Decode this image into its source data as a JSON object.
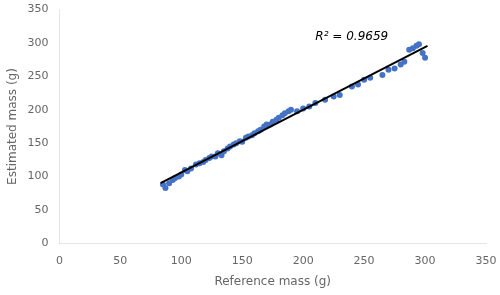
{
  "chart_data": {
    "type": "scatter",
    "xlabel": "Reference mass (g)",
    "ylabel": "Estimated mass (g)",
    "xlim": [
      0,
      350
    ],
    "ylim": [
      0,
      350
    ],
    "xticks": [
      0,
      50,
      100,
      150,
      200,
      250,
      300,
      350
    ],
    "yticks": [
      0,
      50,
      100,
      150,
      200,
      250,
      300,
      350
    ],
    "grid": false,
    "series": [
      {
        "type": "scatter",
        "color": "#4472C4",
        "marker": "circle",
        "x": [
          85,
          87,
          90,
          93,
          95,
          98,
          100,
          103,
          105,
          108,
          112,
          115,
          118,
          120,
          123,
          125,
          128,
          130,
          133,
          135,
          138,
          140,
          143,
          145,
          148,
          150,
          153,
          155,
          158,
          160,
          163,
          165,
          168,
          170,
          173,
          175,
          178,
          180,
          183,
          185,
          188,
          190,
          195,
          200,
          205,
          210,
          218,
          225,
          230,
          240,
          245,
          250,
          255,
          265,
          270,
          275,
          280,
          283,
          287,
          290,
          293,
          295,
          298,
          300
        ],
        "values": [
          88,
          83,
          90,
          95,
          98,
          100,
          103,
          110,
          108,
          112,
          118,
          120,
          122,
          125,
          128,
          130,
          130,
          135,
          132,
          138,
          142,
          145,
          148,
          150,
          153,
          152,
          158,
          160,
          162,
          165,
          168,
          170,
          175,
          178,
          178,
          182,
          185,
          188,
          192,
          195,
          198,
          200,
          198,
          202,
          205,
          210,
          215,
          220,
          222,
          235,
          238,
          245,
          248,
          252,
          260,
          262,
          268,
          272,
          290,
          292,
          296,
          298,
          285,
          278
        ]
      },
      {
        "type": "line",
        "color": "black",
        "line_style": "solid",
        "x": [
          83,
          302
        ],
        "values": [
          90.174,
          295.58
        ]
      }
    ],
    "annotations": [
      {
        "text": "R² = 0.9659",
        "x": 210,
        "y": 305
      }
    ]
  }
}
